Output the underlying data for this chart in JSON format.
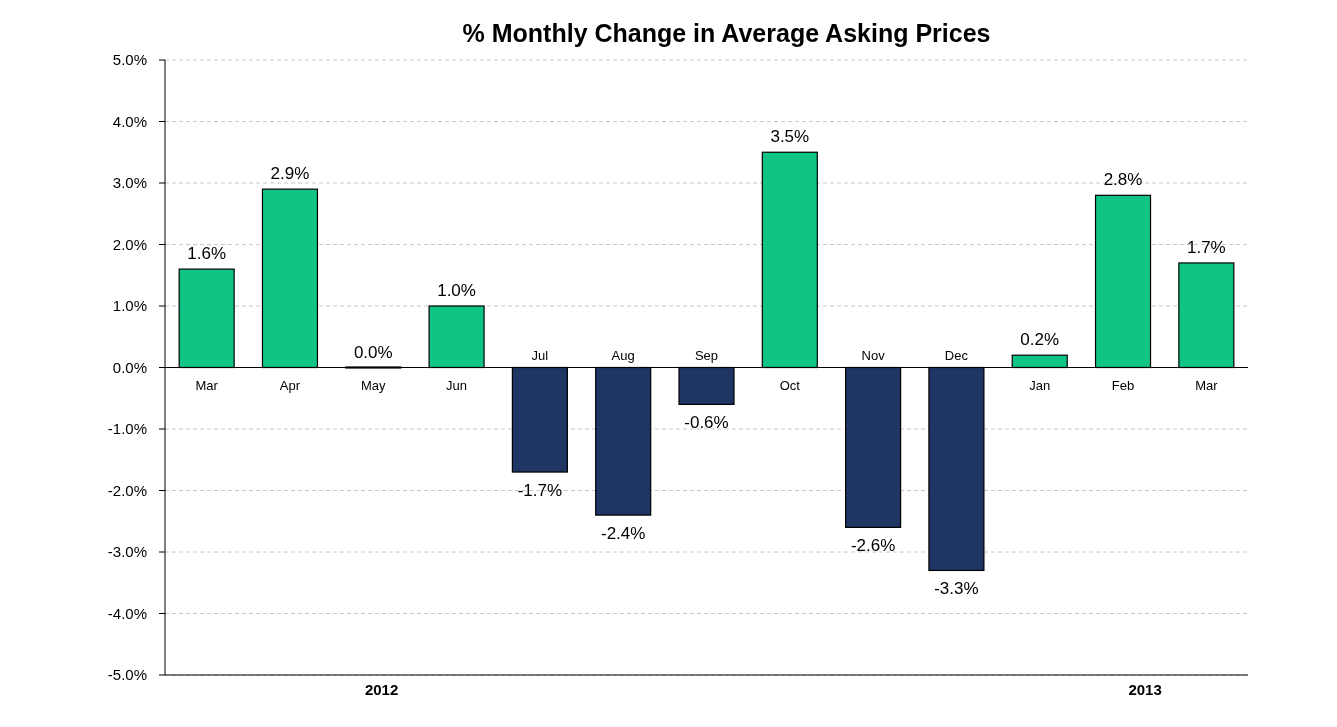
{
  "chart_data": {
    "type": "bar",
    "title": "% Monthly Change in Average Asking Prices",
    "categories": [
      "Mar",
      "Apr",
      "May",
      "Jun",
      "Jul",
      "Aug",
      "Sep",
      "Oct",
      "Nov",
      "Dec",
      "Jan",
      "Feb",
      "Mar"
    ],
    "values": [
      1.6,
      2.9,
      0.0,
      1.0,
      -1.7,
      -2.4,
      -0.6,
      3.5,
      -2.6,
      -3.3,
      0.2,
      2.8,
      1.7
    ],
    "value_labels": [
      "1.6%",
      "2.9%",
      "0.0%",
      "1.0%",
      "-1.7%",
      "-2.4%",
      "-0.6%",
      "3.5%",
      "-2.6%",
      "-3.3%",
      "0.2%",
      "2.8%",
      "1.7%"
    ],
    "colors": [
      "#10c584",
      "#10c584",
      "#10c584",
      "#10c584",
      "#1f3564",
      "#1f3564",
      "#1f3564",
      "#10c584",
      "#1f3564",
      "#1f3564",
      "#10c584",
      "#10c584",
      "#10c584"
    ],
    "ylim": [
      -5,
      5
    ],
    "yticks": [
      {
        "value": -5,
        "label": "-5.0%"
      },
      {
        "value": -4,
        "label": "-4.0%"
      },
      {
        "value": -3,
        "label": "-3.0%"
      },
      {
        "value": -2,
        "label": "-2.0%"
      },
      {
        "value": -1,
        "label": "-1.0%"
      },
      {
        "value": 0,
        "label": "0.0%"
      },
      {
        "value": 1,
        "label": "1.0%"
      },
      {
        "value": 2,
        "label": "2.0%"
      },
      {
        "value": 3,
        "label": "3.0%"
      },
      {
        "value": 4,
        "label": "4.0%"
      },
      {
        "value": 5,
        "label": "5.0%"
      }
    ],
    "grid": "y",
    "annotations": [
      "2012",
      "2013"
    ]
  }
}
